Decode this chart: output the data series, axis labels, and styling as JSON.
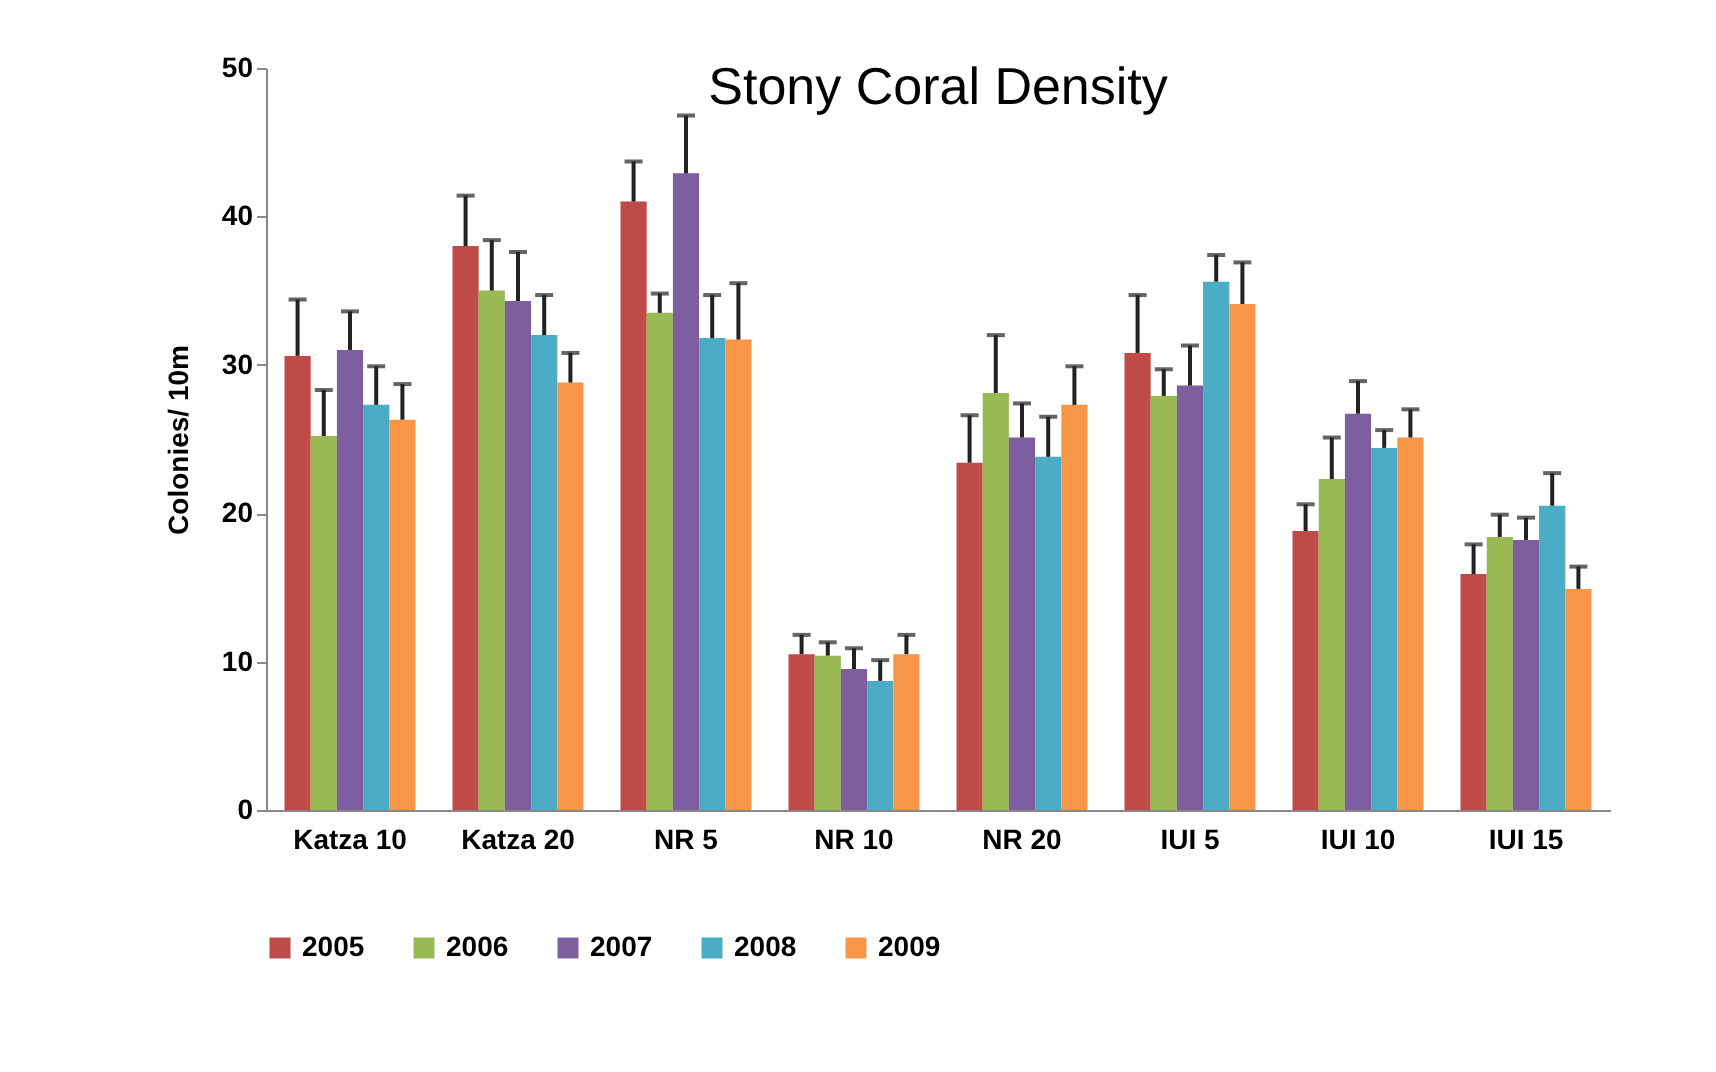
{
  "chart_data": {
    "type": "bar",
    "title": "Stony Coral Density",
    "ylabel": "Colonies/ 10m",
    "categories": [
      "Katza 10",
      "Katza 20",
      "NR 5",
      "NR 10",
      "NR 20",
      "IUI 5",
      "IUI 10",
      "IUI 15"
    ],
    "series": [
      {
        "name": "2005",
        "color": "#be4b48",
        "values": [
          30.6,
          38,
          41,
          10.5,
          23.4,
          30.8,
          18.8,
          15.9
        ],
        "errors": [
          [
            30.6,
            34.4
          ],
          [
            38,
            41.4
          ],
          [
            41,
            43.7
          ],
          [
            10.5,
            11.8
          ],
          [
            23.4,
            26.6
          ],
          [
            30.8,
            34.7
          ],
          [
            18.8,
            20.6
          ],
          [
            15.9,
            17.9
          ]
        ]
      },
      {
        "name": "2006",
        "color": "#98b954",
        "values": [
          25.2,
          35,
          33.5,
          10.4,
          28.1,
          27.9,
          22.3,
          18.4
        ],
        "errors": [
          [
            25.2,
            28.3
          ],
          [
            35,
            38.4
          ],
          [
            33.5,
            34.8
          ],
          [
            10.4,
            11.3
          ],
          [
            28.1,
            32
          ],
          [
            27.9,
            29.7
          ],
          [
            22.3,
            25.1
          ],
          [
            18.4,
            19.9
          ]
        ]
      },
      {
        "name": "2007",
        "color": "#7d5fa0",
        "values": [
          31,
          34.3,
          42.9,
          9.5,
          25.1,
          28.6,
          26.7,
          18.2
        ],
        "errors": [
          [
            31,
            33.6
          ],
          [
            34.3,
            37.6
          ],
          [
            42.9,
            46.8
          ],
          [
            9.5,
            10.9
          ],
          [
            25.1,
            27.4
          ],
          [
            28.6,
            31.3
          ],
          [
            26.7,
            28.9
          ],
          [
            18.2,
            19.7
          ]
        ]
      },
      {
        "name": "2008",
        "color": "#4bacc6",
        "values": [
          27.3,
          32,
          31.8,
          8.7,
          23.8,
          35.6,
          24.4,
          20.5
        ],
        "errors": [
          [
            27.3,
            29.9
          ],
          [
            32,
            34.7
          ],
          [
            31.8,
            34.7
          ],
          [
            8.7,
            10.1
          ],
          [
            23.8,
            26.5
          ],
          [
            35.6,
            37.4
          ],
          [
            24.4,
            25.6
          ],
          [
            20.5,
            22.7
          ]
        ]
      },
      {
        "name": "2009",
        "color": "#f79646",
        "values": [
          26.3,
          28.8,
          31.7,
          10.5,
          27.3,
          34.1,
          25.1,
          14.9
        ],
        "errors": [
          [
            26.3,
            28.7
          ],
          [
            28.8,
            30.8
          ],
          [
            31.7,
            35.5
          ],
          [
            10.5,
            11.8
          ],
          [
            27.3,
            29.9
          ],
          [
            34.1,
            36.9
          ],
          [
            25.1,
            27
          ],
          [
            14.9,
            16.4
          ]
        ]
      }
    ],
    "ylim": [
      0,
      50
    ],
    "yticks": [
      0,
      10,
      20,
      30,
      40,
      50
    ],
    "grid": false,
    "legend": "bottom"
  }
}
